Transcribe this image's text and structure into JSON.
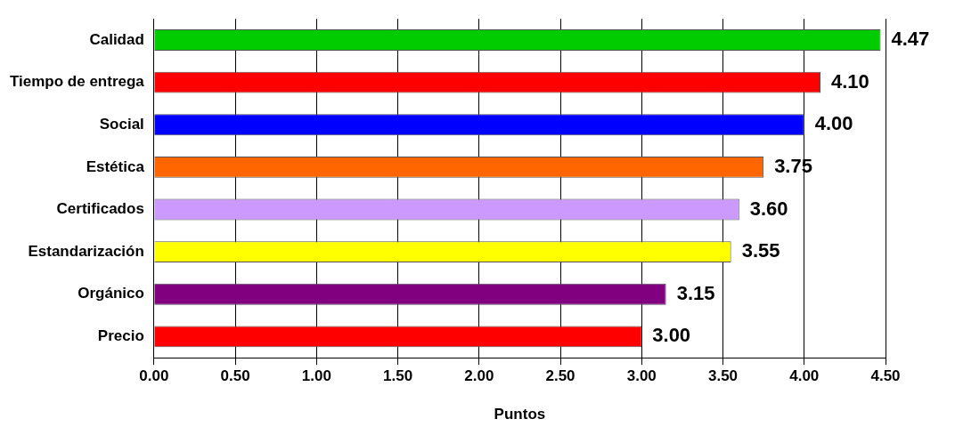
{
  "chart_data": {
    "type": "bar",
    "orientation": "horizontal",
    "xlabel": "Puntos",
    "categories": [
      "Calidad",
      "Tiempo de entrega",
      "Social",
      "Estética",
      "Certificados",
      "Estandarización",
      "Orgánico",
      "Precio"
    ],
    "values": [
      4.47,
      4.1,
      4.0,
      3.75,
      3.6,
      3.55,
      3.15,
      3.0
    ],
    "colors": [
      "#00cc00",
      "#ff0000",
      "#0000ff",
      "#ff6600",
      "#cc99ff",
      "#ffff00",
      "#800080",
      "#ff0000"
    ],
    "value_labels": [
      "4.47",
      "4.10",
      "4.00",
      "3.75",
      "3.60",
      "3.55",
      "3.15",
      "3.00"
    ],
    "xlim": [
      0,
      4.5
    ],
    "xticks": [
      {
        "value": 0,
        "label": "0.00"
      },
      {
        "value": 0.5,
        "label": "0.50"
      },
      {
        "value": 1,
        "label": "1.00"
      },
      {
        "value": 1.5,
        "label": "1.50"
      },
      {
        "value": 2,
        "label": "2.00"
      },
      {
        "value": 2.5,
        "label": "2.50"
      },
      {
        "value": 3,
        "label": "3.00"
      },
      {
        "value": 3.5,
        "label": "3.50"
      },
      {
        "value": 4,
        "label": "4.00"
      },
      {
        "value": 4.5,
        "label": "4.50"
      }
    ],
    "grid": "x",
    "legend": false
  }
}
